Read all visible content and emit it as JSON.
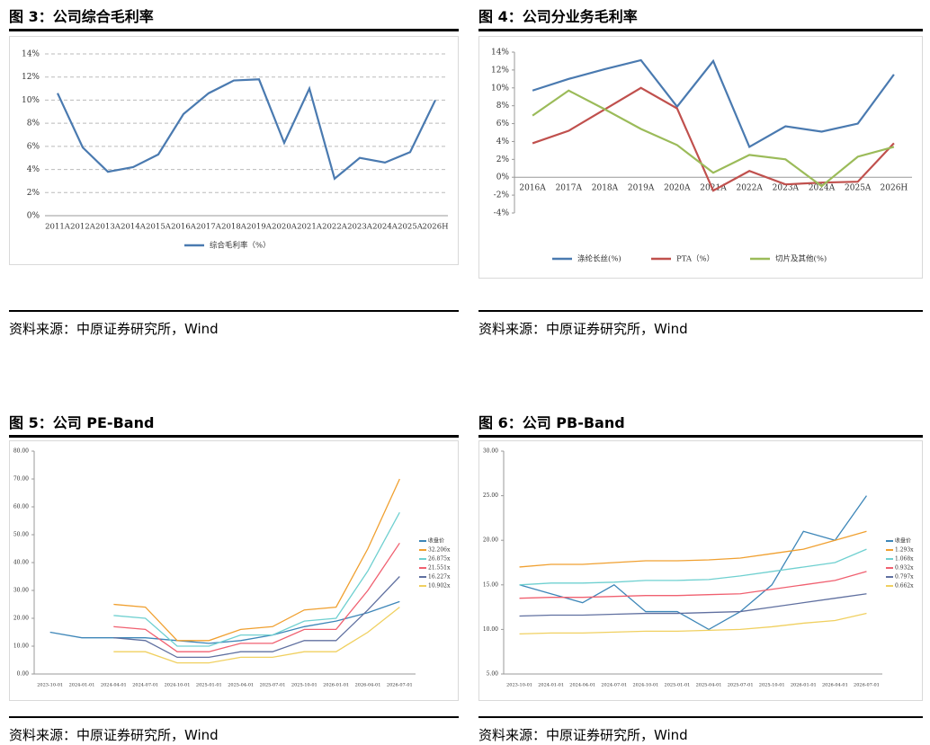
{
  "chart_data": [
    {
      "type": "line",
      "title": "图 3：公司综合毛利率",
      "source": "资料来源：中原证券研究所，Wind",
      "categories": [
        "2011A",
        "2012A",
        "2013A",
        "2014A",
        "2015A",
        "2016A",
        "2017A",
        "2018A",
        "2019A",
        "2020A",
        "2021A",
        "2022A",
        "2023A",
        "2024A",
        "2025A",
        "2026H"
      ],
      "series": [
        {
          "name": "综合毛利率（%）",
          "color": "#4a7ab0",
          "values": [
            10.6,
            5.9,
            3.8,
            4.2,
            5.3,
            8.8,
            10.6,
            11.7,
            11.8,
            6.3,
            11.0,
            3.2,
            5.0,
            4.6,
            5.5,
            10.0
          ]
        }
      ],
      "ylim": [
        0,
        14
      ],
      "yticks": [
        {
          "value": 0,
          "label": "0%"
        },
        {
          "value": 2,
          "label": "2%"
        },
        {
          "value": 4,
          "label": "4%"
        },
        {
          "value": 6,
          "label": "6%"
        },
        {
          "value": 8,
          "label": "8%"
        },
        {
          "value": 10,
          "label": "10%"
        },
        {
          "value": 12,
          "label": "12%"
        },
        {
          "value": 14,
          "label": "14%"
        }
      ],
      "grid": true,
      "legend": "bottom"
    },
    {
      "type": "line",
      "title": "图 4：公司分业务毛利率",
      "source": "资料来源：中原证券研究所，Wind",
      "categories": [
        "2016A",
        "2017A",
        "2018A",
        "2019A",
        "2020A",
        "2021A",
        "2022A",
        "2023A",
        "2024A",
        "2025A",
        "2026H"
      ],
      "series": [
        {
          "name": "涤纶长丝(%)",
          "color": "#4a7ab0",
          "values": [
            9.7,
            11.0,
            12.1,
            13.1,
            7.9,
            13.0,
            3.4,
            5.7,
            5.1,
            6.0,
            11.5
          ]
        },
        {
          "name": "PTA（%）",
          "color": "#c0504d",
          "values": [
            3.8,
            5.2,
            7.6,
            10.0,
            7.7,
            -1.5,
            0.7,
            -0.8,
            -0.6,
            -0.5,
            3.8
          ]
        },
        {
          "name": "切片及其他(%)",
          "color": "#9bbb59",
          "values": [
            6.9,
            9.7,
            7.6,
            5.4,
            3.6,
            0.5,
            2.5,
            2.0,
            -1.0,
            2.3,
            3.4
          ]
        }
      ],
      "ylim": [
        -4,
        14
      ],
      "yticks": [
        {
          "value": -4,
          "label": "-4%"
        },
        {
          "value": -2,
          "label": "-2%"
        },
        {
          "value": 0,
          "label": "0%"
        },
        {
          "value": 2,
          "label": "2%"
        },
        {
          "value": 4,
          "label": "4%"
        },
        {
          "value": 6,
          "label": "6%"
        },
        {
          "value": 8,
          "label": "8%"
        },
        {
          "value": 10,
          "label": "10%"
        },
        {
          "value": 12,
          "label": "12%"
        },
        {
          "value": 14,
          "label": "14%"
        }
      ],
      "grid": false,
      "legend": "bottom"
    },
    {
      "type": "line",
      "title": "图 5：公司 PE-Band",
      "source": "资料来源：中原证券研究所，Wind",
      "categories": [
        "2023-10-01",
        "2024-01-01",
        "2024-04-01",
        "2024-07-01",
        "2024-10-01",
        "2025-01-01",
        "2025-04-01",
        "2025-07-01",
        "2025-10-01",
        "2026-01-01",
        "2026-04-01",
        "2026-07-01"
      ],
      "series": [
        {
          "name": "收盘价",
          "color": "#3d86b8",
          "values": [
            15,
            13,
            13,
            13,
            12,
            11,
            12,
            14,
            17,
            19,
            22,
            26
          ]
        },
        {
          "name": "32.206x",
          "color": "#f0a030",
          "values": [
            null,
            null,
            25,
            24,
            12,
            12,
            16,
            17,
            23,
            24,
            45,
            70
          ]
        },
        {
          "name": "26.875x",
          "color": "#6fd0d0",
          "values": [
            null,
            null,
            21,
            20,
            10,
            10,
            14,
            14,
            19,
            20,
            37,
            58
          ]
        },
        {
          "name": "21.551x",
          "color": "#f06070",
          "values": [
            null,
            null,
            17,
            16,
            8,
            8,
            11,
            11,
            16,
            16,
            30,
            47
          ]
        },
        {
          "name": "16.227x",
          "color": "#6070a0",
          "values": [
            null,
            null,
            13,
            12,
            6,
            6,
            8,
            8,
            12,
            12,
            23,
            35
          ]
        },
        {
          "name": "10.902x",
          "color": "#f0d060",
          "values": [
            null,
            null,
            8,
            8,
            4,
            4,
            6,
            6,
            8,
            8,
            15,
            24
          ]
        }
      ],
      "ylim": [
        0,
        80
      ],
      "yticks": [
        {
          "value": 0,
          "label": "0.00"
        },
        {
          "value": 10,
          "label": "10.00"
        },
        {
          "value": 20,
          "label": "20.00"
        },
        {
          "value": 30,
          "label": "30.00"
        },
        {
          "value": 40,
          "label": "40.00"
        },
        {
          "value": 50,
          "label": "50.00"
        },
        {
          "value": 60,
          "label": "60.00"
        },
        {
          "value": 70,
          "label": "70.00"
        },
        {
          "value": 80,
          "label": "80.00"
        }
      ],
      "grid": false,
      "legend": "right"
    },
    {
      "type": "line",
      "title": "图 6：公司 PB-Band",
      "source": "资料来源：中原证券研究所，Wind",
      "categories": [
        "2023-10-01",
        "2024-01-01",
        "2024-04-01",
        "2024-07-01",
        "2024-10-01",
        "2025-01-01",
        "2025-04-01",
        "2025-07-01",
        "2025-10-01",
        "2026-01-01",
        "2026-04-01",
        "2026-07-01"
      ],
      "series": [
        {
          "name": "收盘价",
          "color": "#3d86b8",
          "values": [
            15,
            14,
            13,
            15,
            12,
            12,
            10,
            12,
            15,
            21,
            20,
            25
          ]
        },
        {
          "name": "1.293x",
          "color": "#f0a030",
          "values": [
            17,
            17.3,
            17.3,
            17.5,
            17.7,
            17.7,
            17.8,
            18,
            18.5,
            19,
            20,
            21
          ]
        },
        {
          "name": "1.068x",
          "color": "#6fd0d0",
          "values": [
            15,
            15.2,
            15.2,
            15.3,
            15.5,
            15.5,
            15.6,
            16,
            16.5,
            17,
            17.5,
            19
          ]
        },
        {
          "name": "0.932x",
          "color": "#f06070",
          "values": [
            13.5,
            13.6,
            13.6,
            13.7,
            13.8,
            13.8,
            13.9,
            14,
            14.5,
            15,
            15.5,
            16.5
          ]
        },
        {
          "name": "0.797x",
          "color": "#6070a0",
          "values": [
            11.5,
            11.6,
            11.6,
            11.7,
            11.8,
            11.8,
            11.9,
            12,
            12.5,
            13,
            13.5,
            14
          ]
        },
        {
          "name": "0.662x",
          "color": "#f0d060",
          "values": [
            9.5,
            9.6,
            9.6,
            9.7,
            9.8,
            9.8,
            9.9,
            10,
            10.3,
            10.7,
            11,
            11.8
          ]
        }
      ],
      "ylim": [
        5,
        30
      ],
      "yticks": [
        {
          "value": 5,
          "label": "5.00"
        },
        {
          "value": 10,
          "label": "10.00"
        },
        {
          "value": 15,
          "label": "15.00"
        },
        {
          "value": 20,
          "label": "20.00"
        },
        {
          "value": 25,
          "label": "25.00"
        },
        {
          "value": 30,
          "label": "30.00"
        }
      ],
      "grid": false,
      "legend": "right"
    }
  ]
}
